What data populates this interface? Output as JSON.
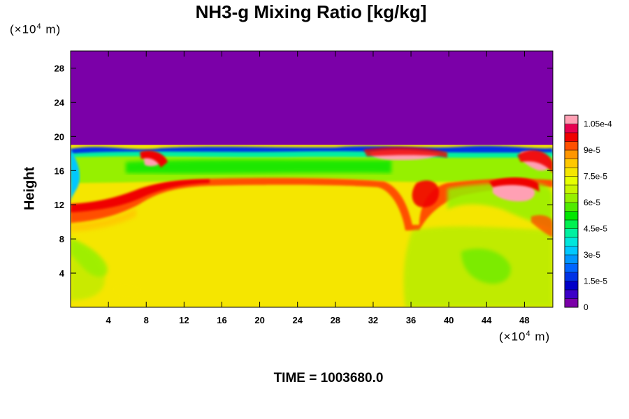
{
  "chart_data": {
    "type": "heatmap",
    "title": "NH3-g Mixing Ratio [kg/kg]",
    "ylabel": "Height",
    "y_unit_prefix": "(×10",
    "y_unit_exp": "4",
    "y_unit_suffix": " m)",
    "x_unit_prefix": "(×10",
    "x_unit_exp": "4",
    "x_unit_suffix": " m)",
    "xlim": [
      0,
      51
    ],
    "ylim": [
      0,
      30
    ],
    "x_ticks": [
      {
        "value": 4,
        "label": "4"
      },
      {
        "value": 8,
        "label": "8"
      },
      {
        "value": 12,
        "label": "12"
      },
      {
        "value": 16,
        "label": "16"
      },
      {
        "value": 20,
        "label": "20"
      },
      {
        "value": 24,
        "label": "24"
      },
      {
        "value": 28,
        "label": "28"
      },
      {
        "value": 32,
        "label": "32"
      },
      {
        "value": 36,
        "label": "36"
      },
      {
        "value": 40,
        "label": "40"
      },
      {
        "value": 44,
        "label": "44"
      },
      {
        "value": 48,
        "label": "48"
      }
    ],
    "y_ticks": [
      {
        "value": 4,
        "label": "4"
      },
      {
        "value": 8,
        "label": "8"
      },
      {
        "value": 12,
        "label": "12"
      },
      {
        "value": 16,
        "label": "16"
      },
      {
        "value": 20,
        "label": "20"
      },
      {
        "value": 24,
        "label": "24"
      },
      {
        "value": 28,
        "label": "28"
      }
    ],
    "colorbar": {
      "range": [
        0,
        0.00011
      ],
      "levels": 22,
      "tick_labels": [
        {
          "value": 0,
          "label": "0"
        },
        {
          "value": 1.5e-05,
          "label": "1.5e-5"
        },
        {
          "value": 3e-05,
          "label": "3e-5"
        },
        {
          "value": 4.5e-05,
          "label": "4.5e-5"
        },
        {
          "value": 6e-05,
          "label": "6e-5"
        },
        {
          "value": 7.5e-05,
          "label": "7.5e-5"
        },
        {
          "value": 9e-05,
          "label": "9e-5"
        },
        {
          "value": 0.000105,
          "label": "1.05e-4"
        }
      ],
      "colors": [
        "#7b00a8",
        "#3c00c8",
        "#0000c8",
        "#0032e6",
        "#0064ff",
        "#0096ff",
        "#00c8ff",
        "#00e6dc",
        "#00f0a0",
        "#00f050",
        "#00e600",
        "#50eb00",
        "#96f000",
        "#c8f500",
        "#e6ff00",
        "#f5e600",
        "#ffc800",
        "#ff9600",
        "#ff5000",
        "#f00000",
        "#e60050",
        "#ffa0b4"
      ]
    },
    "regions": [
      {
        "name": "upper",
        "x": [
          0,
          51
        ],
        "y": [
          19,
          30
        ],
        "value": 0
      },
      {
        "name": "mid-upper-green-band",
        "x": [
          0,
          51
        ],
        "y": [
          15,
          18
        ],
        "value": 6e-05
      },
      {
        "name": "lower",
        "x": [
          0,
          51
        ],
        "y": [
          0,
          15
        ],
        "value": 7.7e-05
      }
    ],
    "time_label": "TIME = 1003680.0"
  }
}
